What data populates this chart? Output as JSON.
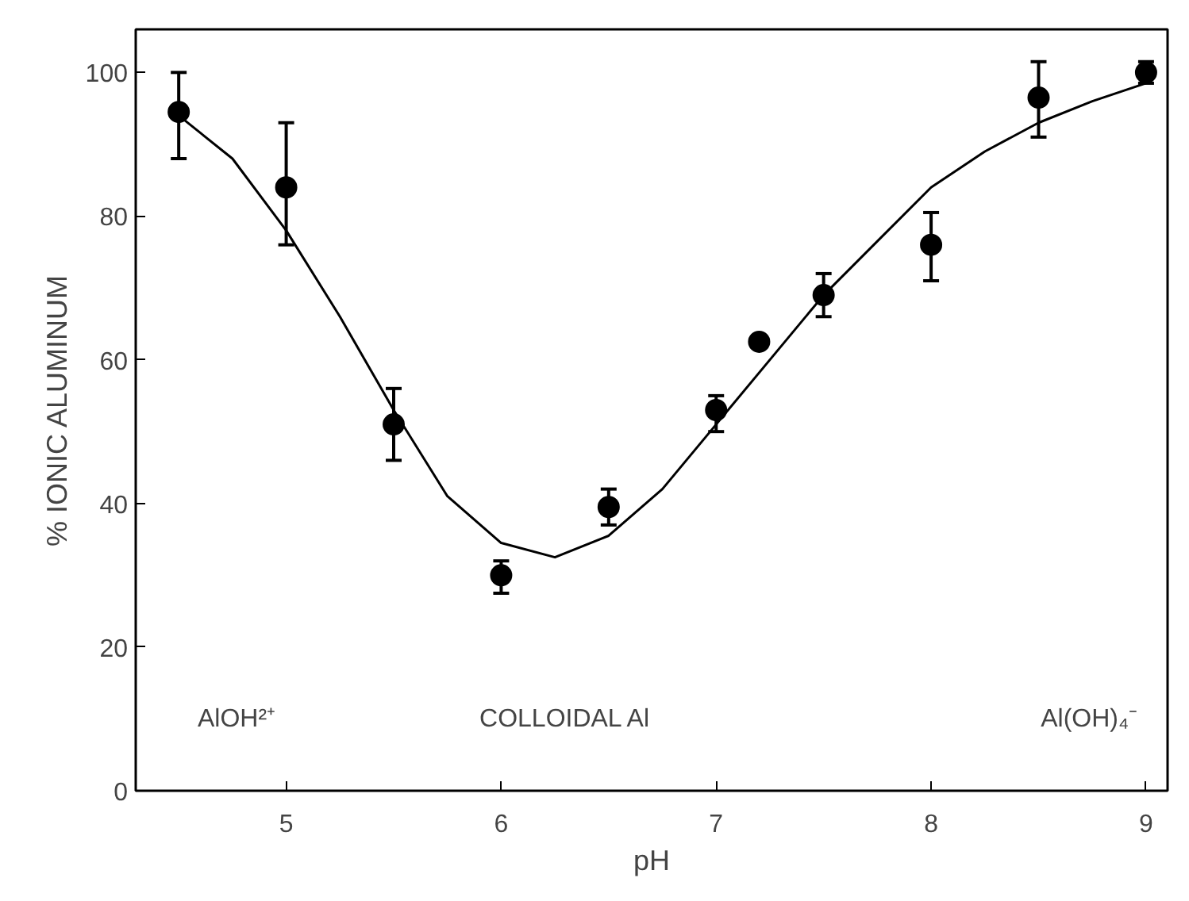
{
  "chart_data": {
    "type": "scatter",
    "xlabel": "pH",
    "ylabel": "% IONIC ALUMINUM",
    "xlim": [
      4.3,
      9.1
    ],
    "ylim": [
      0,
      106
    ],
    "xticks": [
      5,
      6,
      7,
      8,
      9
    ],
    "yticks": [
      0,
      20,
      40,
      60,
      80,
      100
    ],
    "grid": false,
    "series": [
      {
        "marker": "circle",
        "color": "#000000",
        "x": [
          4.5,
          5,
          5.5,
          6,
          6.5,
          7,
          7.2,
          7.5,
          8,
          8.5,
          9
        ],
        "values": [
          94.5,
          84,
          51,
          30,
          39.5,
          53,
          62.5,
          69,
          76,
          96.5,
          100
        ],
        "errors": [
          [
            88,
            100
          ],
          [
            76,
            93
          ],
          [
            46,
            56
          ],
          [
            27.5,
            32
          ],
          [
            37,
            42
          ],
          [
            50,
            55
          ],
          null,
          [
            66,
            72
          ],
          [
            71,
            80.5
          ],
          [
            91,
            101.5
          ],
          [
            98.5,
            101.5
          ]
        ]
      },
      {
        "type": "line",
        "marker": "none",
        "color": "#000000",
        "line_style": "solid",
        "x": [
          4.5,
          4.75,
          5,
          5.25,
          5.5,
          5.75,
          6,
          6.25,
          6.5,
          6.75,
          7,
          7.25,
          7.5,
          7.75,
          8,
          8.25,
          8.5,
          8.75,
          9
        ],
        "values": [
          94,
          88,
          78,
          66,
          53,
          41,
          34.5,
          32.5,
          35.5,
          42,
          51,
          60,
          69,
          76.5,
          84,
          89,
          93,
          96,
          98.5
        ]
      }
    ],
    "annotations": [
      "AlOH²⁺",
      "COLLOIDAL Al",
      "Al(OH)₄⁻"
    ]
  }
}
